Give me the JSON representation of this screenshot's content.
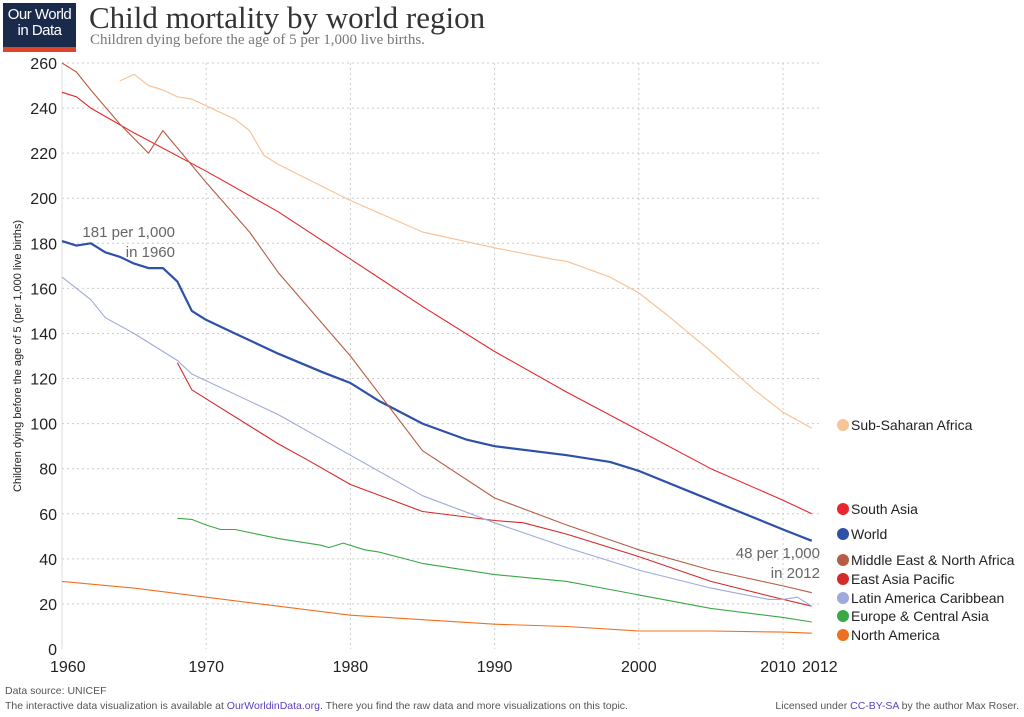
{
  "logo": {
    "line1": "Our World",
    "line2": "in Data"
  },
  "title": "Child mortality by world region",
  "subtitle": "Children dying before the age of 5 per 1,000 live births.",
  "footer": {
    "source": "Data source: UNICEF",
    "interactive_prefix": "The interactive data visualization is available at ",
    "interactive_link": "OurWorldinData.org",
    "interactive_suffix": ". There you find the raw data and more visualizations on this topic.",
    "license_prefix": "Licensed under ",
    "license_link": "CC-BY-SA",
    "license_suffix": " by the author Max Roser."
  },
  "chart_data": {
    "type": "line",
    "title": "Child mortality by world region",
    "ylabel": "Children dying before the age of 5 (per 1,000 live births)",
    "xlabel": "",
    "xlim": [
      1960,
      2012
    ],
    "ylim": [
      0,
      260
    ],
    "x_ticks": [
      "1960",
      "1970",
      "1980",
      "1990",
      "2000",
      "2010",
      "2012"
    ],
    "y_ticks": [
      "0",
      "20",
      "40",
      "60",
      "80",
      "100",
      "120",
      "140",
      "160",
      "180",
      "200",
      "220",
      "240",
      "260"
    ],
    "grid": true,
    "legend": "right",
    "annotations": [
      {
        "line1": "181 per 1,000",
        "line2": "in 1960"
      },
      {
        "line1": "48 per 1,000",
        "line2": "in 2012"
      }
    ],
    "series": [
      {
        "name": "Sub-Saharan Africa",
        "color": "#f7c498",
        "width": 1.2,
        "x": [
          1964,
          1965,
          1966,
          1967,
          1968,
          1969,
          1970,
          1972,
          1973,
          1974,
          1975,
          1980,
          1985,
          1990,
          1994,
          1995,
          1998,
          2000,
          2002,
          2005,
          2008,
          2010,
          2012
        ],
        "y": [
          252,
          255,
          250,
          248,
          245,
          244,
          241,
          235,
          230,
          219,
          215,
          199,
          185,
          178,
          173,
          172,
          165,
          158,
          148,
          132,
          115,
          105,
          98
        ]
      },
      {
        "name": "South Asia",
        "color": "#e8262b",
        "width": 1.1,
        "x": [
          1960,
          1961,
          1962,
          1965,
          1970,
          1975,
          1980,
          1985,
          1990,
          1995,
          2000,
          2005,
          2010,
          2012
        ],
        "y": [
          247,
          245,
          240,
          229,
          212,
          194,
          173,
          152,
          132,
          114,
          97,
          80,
          66,
          60
        ]
      },
      {
        "name": "World",
        "color": "#2d51a8",
        "width": 2.2,
        "x": [
          1960,
          1961,
          1962,
          1963,
          1964,
          1965,
          1966,
          1967,
          1968,
          1969,
          1970,
          1972,
          1975,
          1978,
          1980,
          1982,
          1985,
          1988,
          1990,
          1995,
          1998,
          2000,
          2005,
          2010,
          2012
        ],
        "y": [
          181,
          179,
          180,
          176,
          174,
          171,
          169,
          169,
          163,
          150,
          146,
          140,
          131,
          123,
          118,
          110,
          100,
          93,
          90,
          86,
          83,
          79,
          66,
          53,
          48
        ]
      },
      {
        "name": "Middle East & North Africa",
        "color": "#b55d45",
        "width": 1.1,
        "x": [
          1960,
          1961,
          1962,
          1964,
          1966,
          1967,
          1970,
          1973,
          1975,
          1980,
          1985,
          1990,
          1995,
          2000,
          2005,
          2010,
          2012
        ],
        "y": [
          260,
          256,
          248,
          233,
          220,
          230,
          207,
          185,
          167,
          130,
          88,
          67,
          55,
          44,
          35,
          28,
          25
        ]
      },
      {
        "name": "East Asia Pacific",
        "color": "#d42a2a",
        "width": 1.1,
        "x": [
          1968,
          1969,
          1970,
          1975,
          1977,
          1980,
          1985,
          1990,
          1992,
          1995,
          2000,
          2005,
          2010,
          2012
        ],
        "y": [
          127,
          115,
          111,
          91,
          84,
          73,
          61,
          57,
          56,
          51,
          41,
          30,
          22,
          19
        ]
      },
      {
        "name": "Latin America Caribbean",
        "color": "#9fa9dc",
        "width": 1.1,
        "x": [
          1960,
          1962,
          1963,
          1965,
          1968,
          1969,
          1970,
          1975,
          1980,
          1985,
          1990,
          1995,
          2000,
          2005,
          2009,
          2010,
          2011,
          2012
        ],
        "y": [
          165,
          155,
          147,
          140,
          128,
          122,
          119,
          104,
          86,
          68,
          56,
          45,
          35,
          27,
          22,
          22,
          23,
          19
        ]
      },
      {
        "name": "Europe & Central Asia",
        "color": "#3aa845",
        "width": 1.1,
        "x": [
          1968,
          1969,
          1970,
          1971,
          1972,
          1975,
          1978,
          1978.5,
          1979.5,
          1981,
          1982,
          1985,
          1990,
          1995,
          2000,
          2005,
          2010,
          2012
        ],
        "y": [
          58,
          57.5,
          55,
          53,
          53,
          49,
          46,
          45,
          47,
          44,
          43,
          38,
          33,
          30,
          24,
          18,
          14,
          12
        ]
      },
      {
        "name": "North America",
        "color": "#f07020",
        "width": 1.1,
        "x": [
          1960,
          1965,
          1970,
          1975,
          1980,
          1985,
          1990,
          1995,
          2000,
          2005,
          2010,
          2012
        ],
        "y": [
          30,
          27,
          23,
          19,
          15,
          13,
          11,
          10,
          8,
          8,
          7.5,
          7
        ]
      }
    ]
  }
}
